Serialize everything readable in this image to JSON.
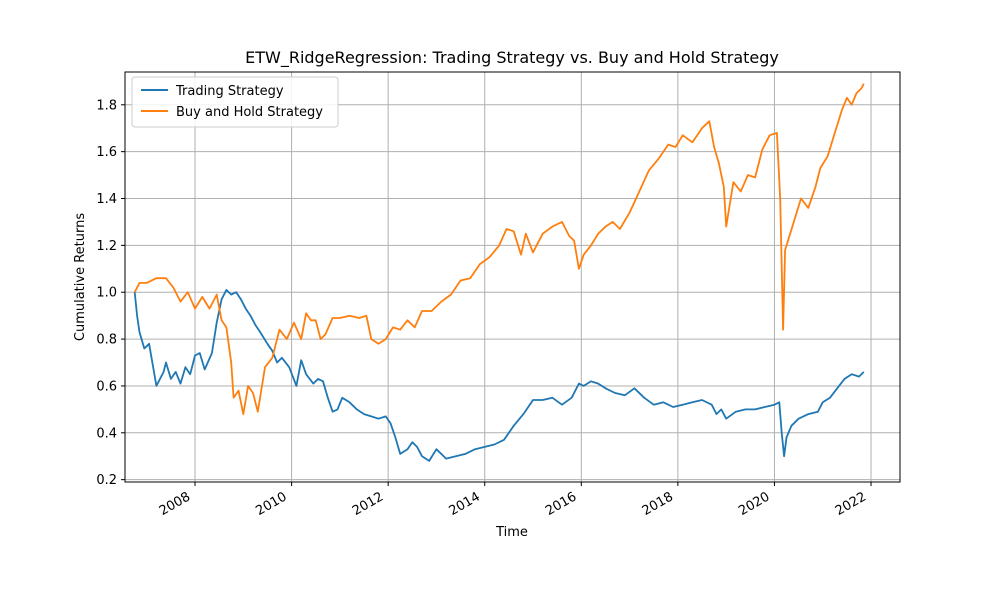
{
  "chart_data": {
    "type": "line",
    "title": "ETW_RidgeRegression: Trading Strategy vs. Buy and Hold Strategy",
    "xlabel": "Time",
    "ylabel": "Cumulative Returns",
    "xlim": [
      2006.55,
      2022.6
    ],
    "ylim": [
      0.19,
      1.94
    ],
    "grid": true,
    "legend_position": "top-left",
    "x_ticks": [
      2008,
      2010,
      2012,
      2014,
      2016,
      2018,
      2020,
      2022
    ],
    "x_tick_labels": [
      "2008",
      "2010",
      "2012",
      "2014",
      "2016",
      "2018",
      "2020",
      "2022"
    ],
    "y_ticks": [
      0.2,
      0.4,
      0.6,
      0.8,
      1.0,
      1.2,
      1.4,
      1.6,
      1.8
    ],
    "y_tick_labels": [
      "0.2",
      "0.4",
      "0.6",
      "0.8",
      "1.0",
      "1.2",
      "1.4",
      "1.6",
      "1.8"
    ],
    "series": [
      {
        "name": "Trading Strategy",
        "color": "#1f77b4",
        "x": [
          2006.75,
          2006.8,
          2006.85,
          2006.95,
          2007.05,
          2007.2,
          2007.35,
          2007.4,
          2007.5,
          2007.6,
          2007.7,
          2007.8,
          2007.9,
          2008.0,
          2008.1,
          2008.2,
          2008.35,
          2008.45,
          2008.55,
          2008.65,
          2008.75,
          2008.85,
          2008.95,
          2009.05,
          2009.15,
          2009.25,
          2009.35,
          2009.5,
          2009.6,
          2009.7,
          2009.8,
          2009.95,
          2010.1,
          2010.2,
          2010.3,
          2010.45,
          2010.55,
          2010.65,
          2010.75,
          2010.85,
          2010.95,
          2011.05,
          2011.2,
          2011.35,
          2011.5,
          2011.65,
          2011.8,
          2011.95,
          2012.05,
          2012.15,
          2012.25,
          2012.4,
          2012.5,
          2012.6,
          2012.7,
          2012.85,
          2013.0,
          2013.2,
          2013.4,
          2013.6,
          2013.8,
          2014.0,
          2014.2,
          2014.4,
          2014.6,
          2014.8,
          2015.0,
          2015.2,
          2015.4,
          2015.6,
          2015.8,
          2015.95,
          2016.05,
          2016.2,
          2016.35,
          2016.5,
          2016.7,
          2016.9,
          2017.1,
          2017.3,
          2017.5,
          2017.7,
          2017.9,
          2018.1,
          2018.3,
          2018.5,
          2018.7,
          2018.8,
          2018.9,
          2019.0,
          2019.2,
          2019.4,
          2019.6,
          2019.8,
          2020.0,
          2020.1,
          2020.15,
          2020.2,
          2020.25,
          2020.35,
          2020.5,
          2020.7,
          2020.9,
          2021.0,
          2021.15,
          2021.3,
          2021.45,
          2021.6,
          2021.75,
          2021.85
        ],
        "values": [
          1.0,
          0.9,
          0.83,
          0.76,
          0.78,
          0.6,
          0.66,
          0.7,
          0.63,
          0.66,
          0.61,
          0.68,
          0.65,
          0.73,
          0.74,
          0.67,
          0.74,
          0.87,
          0.97,
          1.01,
          0.99,
          1.0,
          0.97,
          0.93,
          0.9,
          0.86,
          0.83,
          0.78,
          0.75,
          0.7,
          0.72,
          0.68,
          0.6,
          0.71,
          0.65,
          0.61,
          0.63,
          0.62,
          0.55,
          0.49,
          0.5,
          0.55,
          0.53,
          0.5,
          0.48,
          0.47,
          0.46,
          0.47,
          0.44,
          0.38,
          0.31,
          0.33,
          0.36,
          0.34,
          0.3,
          0.28,
          0.33,
          0.29,
          0.3,
          0.31,
          0.33,
          0.34,
          0.35,
          0.37,
          0.43,
          0.48,
          0.54,
          0.54,
          0.55,
          0.52,
          0.55,
          0.61,
          0.6,
          0.62,
          0.61,
          0.59,
          0.57,
          0.56,
          0.59,
          0.55,
          0.52,
          0.53,
          0.51,
          0.52,
          0.53,
          0.54,
          0.52,
          0.48,
          0.5,
          0.46,
          0.49,
          0.5,
          0.5,
          0.51,
          0.52,
          0.53,
          0.4,
          0.3,
          0.38,
          0.43,
          0.46,
          0.48,
          0.49,
          0.53,
          0.55,
          0.59,
          0.63,
          0.65,
          0.64,
          0.66
        ]
      },
      {
        "name": "Buy and Hold Strategy",
        "color": "#ff7f0e",
        "x": [
          2006.75,
          2006.85,
          2007.0,
          2007.2,
          2007.4,
          2007.55,
          2007.7,
          2007.85,
          2008.0,
          2008.15,
          2008.3,
          2008.45,
          2008.55,
          2008.65,
          2008.75,
          2008.8,
          2008.9,
          2009.0,
          2009.1,
          2009.2,
          2009.3,
          2009.45,
          2009.6,
          2009.75,
          2009.9,
          2010.05,
          2010.2,
          2010.3,
          2010.4,
          2010.5,
          2010.6,
          2010.7,
          2010.85,
          2011.0,
          2011.2,
          2011.4,
          2011.55,
          2011.65,
          2011.8,
          2011.95,
          2012.1,
          2012.25,
          2012.4,
          2012.55,
          2012.7,
          2012.9,
          2013.1,
          2013.3,
          2013.5,
          2013.7,
          2013.9,
          2014.1,
          2014.3,
          2014.45,
          2014.6,
          2014.75,
          2014.85,
          2015.0,
          2015.2,
          2015.4,
          2015.6,
          2015.75,
          2015.85,
          2015.95,
          2016.05,
          2016.2,
          2016.35,
          2016.5,
          2016.65,
          2016.8,
          2017.0,
          2017.2,
          2017.4,
          2017.6,
          2017.8,
          2017.95,
          2018.1,
          2018.3,
          2018.5,
          2018.65,
          2018.75,
          2018.85,
          2018.95,
          2019.0,
          2019.15,
          2019.3,
          2019.45,
          2019.6,
          2019.75,
          2019.9,
          2020.05,
          2020.12,
          2020.18,
          2020.22,
          2020.28,
          2020.4,
          2020.55,
          2020.7,
          2020.85,
          2020.95,
          2021.1,
          2021.25,
          2021.4,
          2021.5,
          2021.6,
          2021.7,
          2021.8,
          2021.85
        ],
        "values": [
          1.0,
          1.04,
          1.04,
          1.06,
          1.06,
          1.02,
          0.96,
          1.0,
          0.93,
          0.98,
          0.93,
          0.99,
          0.88,
          0.85,
          0.7,
          0.55,
          0.58,
          0.48,
          0.6,
          0.57,
          0.49,
          0.68,
          0.72,
          0.84,
          0.8,
          0.87,
          0.8,
          0.91,
          0.88,
          0.88,
          0.8,
          0.82,
          0.89,
          0.89,
          0.9,
          0.89,
          0.9,
          0.8,
          0.78,
          0.8,
          0.85,
          0.84,
          0.88,
          0.85,
          0.92,
          0.92,
          0.96,
          0.99,
          1.05,
          1.06,
          1.12,
          1.15,
          1.2,
          1.27,
          1.26,
          1.16,
          1.25,
          1.17,
          1.25,
          1.28,
          1.3,
          1.24,
          1.22,
          1.1,
          1.16,
          1.2,
          1.25,
          1.28,
          1.3,
          1.27,
          1.34,
          1.43,
          1.52,
          1.57,
          1.63,
          1.62,
          1.67,
          1.64,
          1.7,
          1.73,
          1.62,
          1.55,
          1.45,
          1.28,
          1.47,
          1.43,
          1.5,
          1.49,
          1.61,
          1.67,
          1.68,
          1.4,
          0.84,
          1.18,
          1.22,
          1.3,
          1.4,
          1.36,
          1.45,
          1.53,
          1.58,
          1.68,
          1.78,
          1.83,
          1.8,
          1.85,
          1.87,
          1.89
        ]
      }
    ]
  }
}
